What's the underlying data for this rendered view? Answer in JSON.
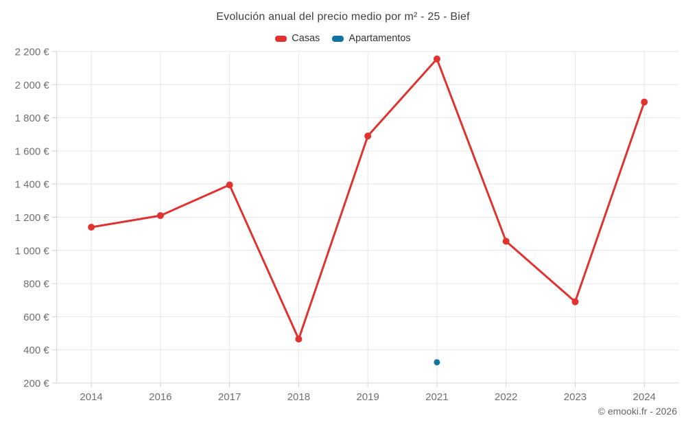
{
  "header": {
    "title": "Evolución anual del precio medio por m² - 25 - Bief"
  },
  "legend": {
    "items": [
      {
        "label": "Casas",
        "color": "#e0322e"
      },
      {
        "label": "Apartamentos",
        "color": "#1273a3"
      }
    ]
  },
  "footer": {
    "credits": "© emooki.fr - 2026"
  },
  "chart_data": {
    "type": "line",
    "title": "Evolución anual del precio medio por m² - 25 - Bief",
    "categories": [
      "2014",
      "2016",
      "2017",
      "2018",
      "2019",
      "2021",
      "2022",
      "2023",
      "2024"
    ],
    "series": [
      {
        "name": "Casas",
        "color": "#e0322e",
        "marker_radius": 5,
        "line_width": 3,
        "values": [
          1140,
          1210,
          1395,
          465,
          1690,
          2155,
          1055,
          690,
          1895
        ]
      },
      {
        "name": "Apartamentos",
        "color": "#1273a3",
        "marker_radius": 4.5,
        "line_width": 3,
        "values": [
          null,
          null,
          null,
          null,
          null,
          325,
          null,
          null,
          null
        ]
      }
    ],
    "xlabel": "",
    "ylabel": "",
    "ylim": [
      200,
      2200
    ],
    "ytick_step": 200,
    "ytick_suffix": " €",
    "grid": true,
    "legend_position": "top"
  },
  "colors": {
    "grid": "#e6e6e6",
    "axis": "#d4d4d4",
    "tick": "#cfcfcf",
    "axis_text": "#6e6e6e",
    "title_text": "#3f3f3f",
    "background": "#ffffff"
  }
}
